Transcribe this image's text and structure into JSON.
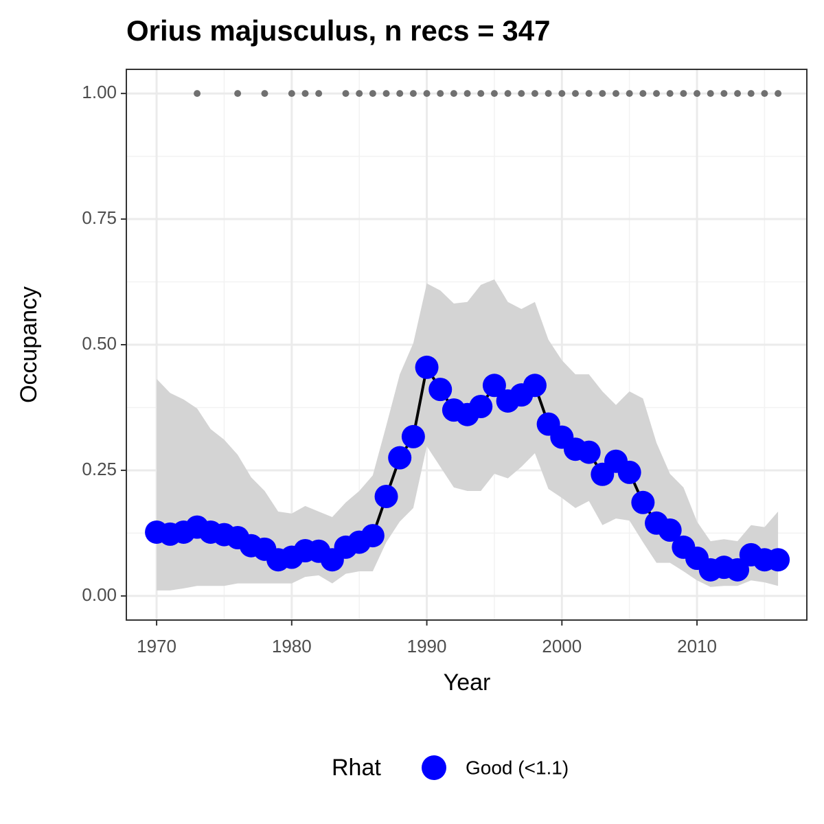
{
  "chart_data": {
    "type": "line",
    "title": "Orius majusculus, n recs = 347",
    "x_label": "Year",
    "y_label": "Occupancy",
    "legend_title": "Rhat",
    "x": [
      1970,
      1971,
      1972,
      1973,
      1974,
      1975,
      1976,
      1977,
      1978,
      1979,
      1980,
      1981,
      1982,
      1983,
      1984,
      1985,
      1986,
      1987,
      1988,
      1989,
      1990,
      1991,
      1992,
      1993,
      1994,
      1995,
      1996,
      1997,
      1998,
      1999,
      2000,
      2001,
      2002,
      2003,
      2004,
      2005,
      2006,
      2007,
      2008,
      2009,
      2010,
      2011,
      2012,
      2013,
      2014,
      2015,
      2016
    ],
    "series": [
      {
        "name": "Good (<1.1)",
        "color": "#0000ff",
        "line_color": "#000000",
        "values": [
          0.127,
          0.123,
          0.127,
          0.137,
          0.127,
          0.122,
          0.116,
          0.1,
          0.093,
          0.072,
          0.077,
          0.09,
          0.089,
          0.072,
          0.097,
          0.107,
          0.12,
          0.198,
          0.275,
          0.317,
          0.455,
          0.411,
          0.37,
          0.361,
          0.377,
          0.419,
          0.388,
          0.4,
          0.419,
          0.342,
          0.316,
          0.292,
          0.286,
          0.242,
          0.268,
          0.246,
          0.186,
          0.145,
          0.131,
          0.097,
          0.075,
          0.052,
          0.057,
          0.052,
          0.082,
          0.072,
          0.072
        ],
        "upper": [
          0.432,
          0.404,
          0.391,
          0.373,
          0.332,
          0.311,
          0.281,
          0.236,
          0.209,
          0.168,
          0.164,
          0.179,
          0.168,
          0.157,
          0.186,
          0.209,
          0.24,
          0.339,
          0.441,
          0.503,
          0.622,
          0.608,
          0.582,
          0.585,
          0.619,
          0.63,
          0.585,
          0.571,
          0.585,
          0.51,
          0.469,
          0.441,
          0.441,
          0.407,
          0.38,
          0.407,
          0.393,
          0.305,
          0.243,
          0.216,
          0.148,
          0.109,
          0.113,
          0.109,
          0.141,
          0.137,
          0.168
        ],
        "lower": [
          0.011,
          0.011,
          0.015,
          0.02,
          0.02,
          0.02,
          0.025,
          0.025,
          0.025,
          0.025,
          0.025,
          0.038,
          0.041,
          0.025,
          0.044,
          0.049,
          0.049,
          0.107,
          0.148,
          0.175,
          0.298,
          0.257,
          0.216,
          0.209,
          0.209,
          0.243,
          0.234,
          0.257,
          0.284,
          0.213,
          0.195,
          0.175,
          0.189,
          0.141,
          0.154,
          0.15,
          0.107,
          0.066,
          0.066,
          0.049,
          0.031,
          0.018,
          0.02,
          0.02,
          0.031,
          0.027,
          0.02
        ],
        "band_color": "#d4d4d4"
      }
    ],
    "records": {
      "color": "#707070",
      "x": [
        1973,
        1976,
        1978,
        1980,
        1981,
        1982,
        1984,
        1985,
        1986,
        1987,
        1988,
        1989,
        1990,
        1991,
        1992,
        1993,
        1994,
        1995,
        1996,
        1997,
        1998,
        1999,
        2000,
        2001,
        2002,
        2003,
        2004,
        2005,
        2006,
        2007,
        2008,
        2009,
        2010,
        2011,
        2012,
        2013,
        2014,
        2015,
        2016
      ],
      "values": [
        1,
        1,
        1,
        1,
        1,
        1,
        1,
        1,
        1,
        1,
        1,
        1,
        1,
        1,
        1,
        1,
        1,
        1,
        1,
        1,
        1,
        1,
        1,
        1,
        1,
        1,
        1,
        1,
        1,
        1,
        1,
        1,
        1,
        1,
        1,
        1,
        1,
        1,
        1
      ]
    },
    "xlim": [
      1967.76,
      2018.13
    ],
    "ylim": [
      -0.048,
      1.048
    ],
    "xticks": [
      1970,
      1980,
      1990,
      2000,
      2010
    ],
    "yticks": [
      {
        "value": 0,
        "label": "0.00"
      },
      {
        "value": 0.25,
        "label": "0.25"
      },
      {
        "value": 0.5,
        "label": "0.50"
      },
      {
        "value": 0.75,
        "label": "0.75"
      },
      {
        "value": 1,
        "label": "1.00"
      }
    ],
    "minor_xticks": [
      1975,
      1985,
      1995,
      2005,
      2015
    ],
    "minor_yticks": [
      0.125,
      0.375,
      0.625,
      0.875
    ],
    "grid": true
  }
}
